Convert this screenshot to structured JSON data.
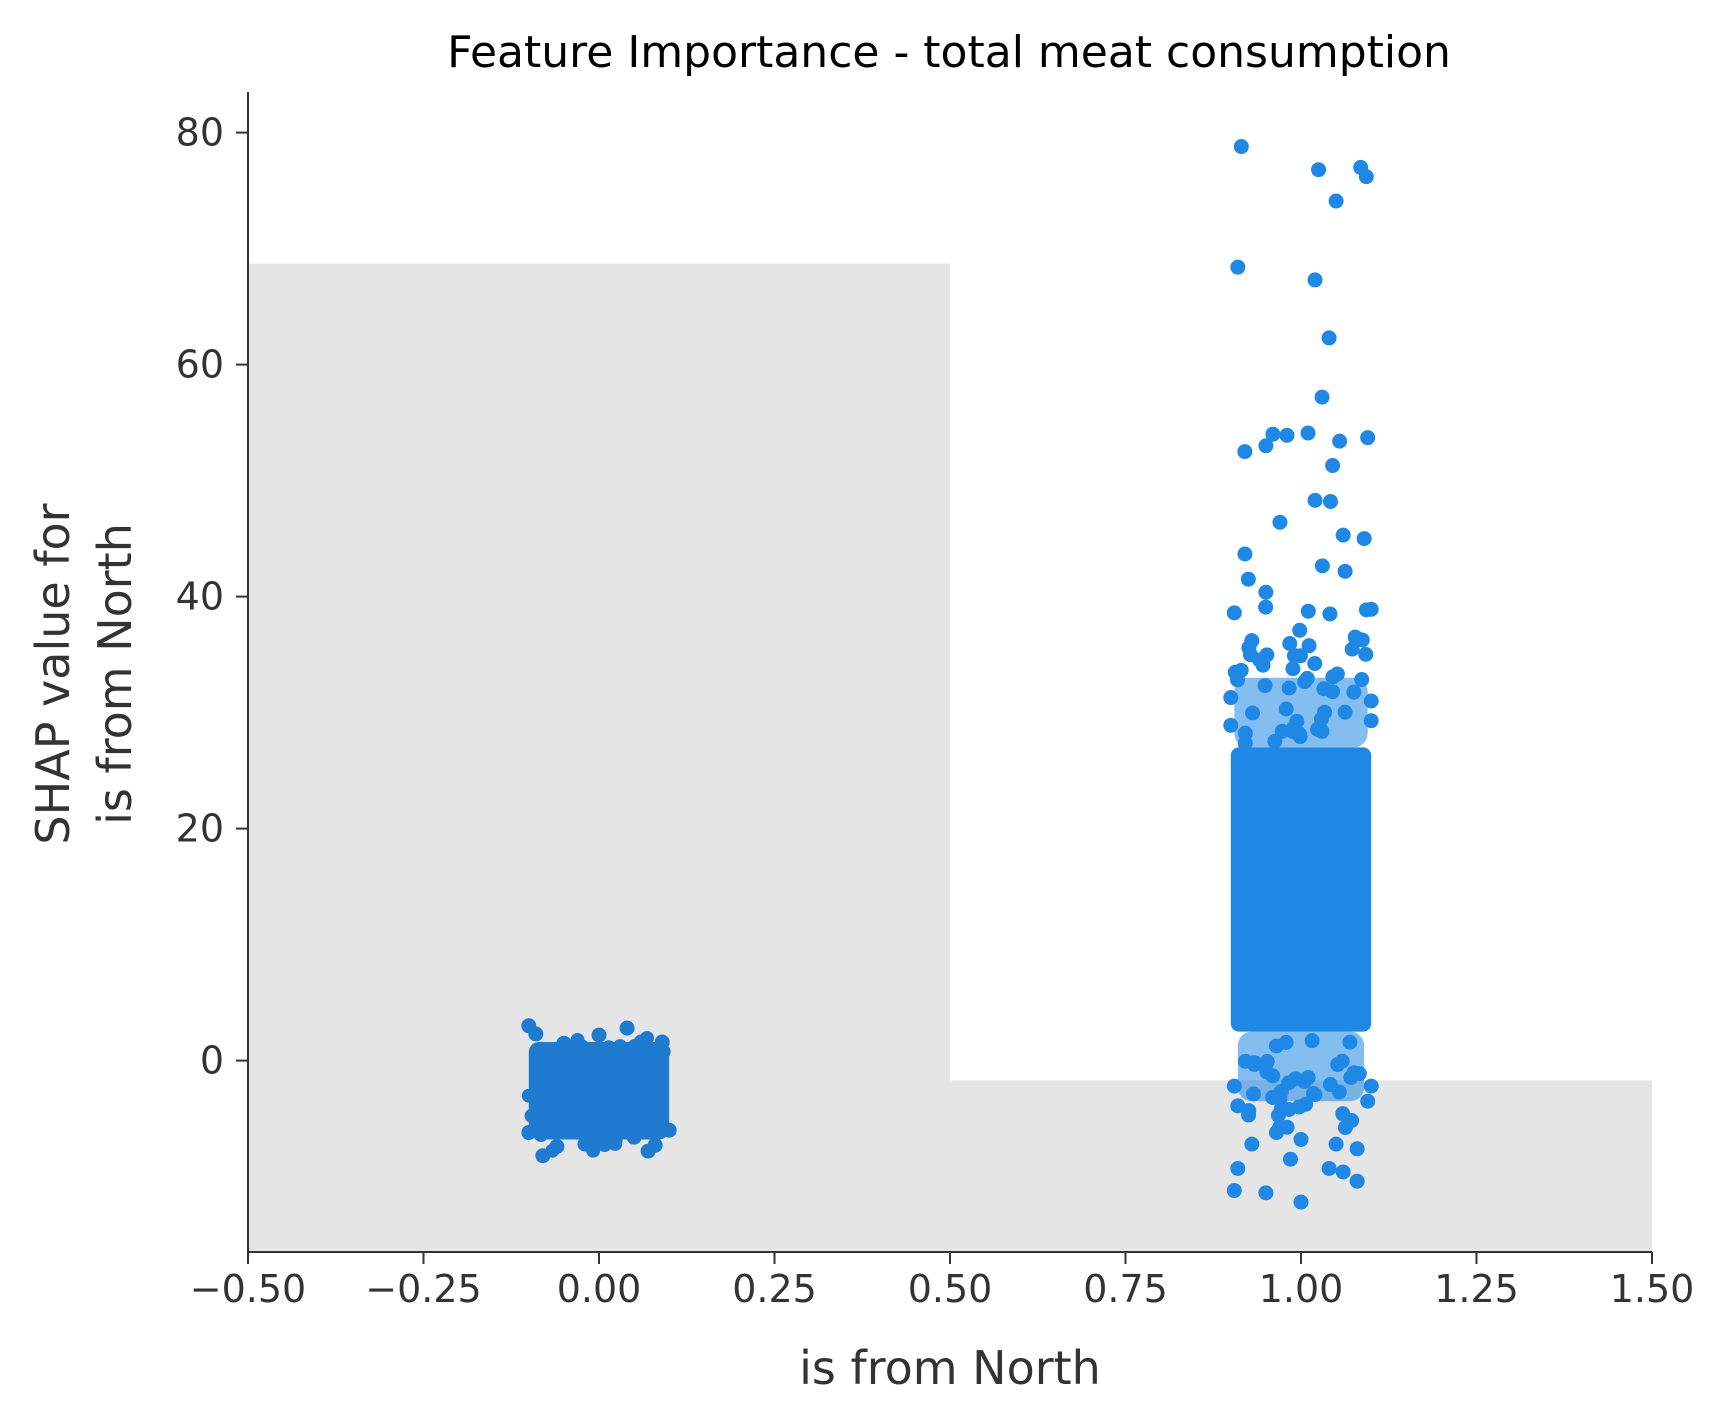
{
  "chart_data": {
    "type": "scatter",
    "title": "Feature Importance - total meat consumption",
    "xlabel": "is from North",
    "ylabel_lines": [
      "SHAP value for",
      "is from North"
    ],
    "xlim": [
      -0.5,
      1.5
    ],
    "ylim": [
      -16.5,
      83.5
    ],
    "x_ticks": [
      -0.5,
      -0.25,
      0.0,
      0.25,
      0.5,
      0.75,
      1.0,
      1.25,
      1.5
    ],
    "x_tick_labels": [
      "−0.50",
      "−0.25",
      "0.00",
      "0.25",
      "0.50",
      "0.75",
      "1.00",
      "1.25",
      "1.50"
    ],
    "y_ticks": [
      0,
      20,
      40,
      60,
      80
    ],
    "y_tick_labels": [
      "0",
      "20",
      "40",
      "60",
      "80"
    ],
    "grid": false,
    "background_bars": [
      {
        "x0": -0.5,
        "x1": 0.5,
        "y_top": 68.7
      },
      {
        "x0": 0.5,
        "x1": 1.5,
        "y_top": -1.7
      }
    ],
    "series": [
      {
        "category_x": 0,
        "color": "#1f7bcf",
        "points": [
          [
            -0.1,
            3.0
          ],
          [
            -0.09,
            2.3
          ],
          [
            -0.05,
            1.5
          ],
          [
            0.0,
            2.2
          ],
          [
            0.04,
            2.8
          ],
          [
            0.06,
            1.6
          ],
          [
            0.09,
            1.6
          ],
          [
            -0.1,
            -6.2
          ],
          [
            -0.08,
            -8.2
          ],
          [
            -0.02,
            -7.2
          ],
          [
            0.02,
            -7.0
          ],
          [
            0.07,
            -7.8
          ],
          [
            0.1,
            -6.0
          ],
          [
            -0.06,
            -7.4
          ],
          [
            0.05,
            -6.6
          ],
          [
            -0.03,
            1.0
          ],
          [
            0.03,
            1.2
          ],
          [
            0.08,
            -7.3
          ]
        ]
      },
      {
        "category_x": 1,
        "color": "#1f88e5",
        "points": [
          [
            0.915,
            78.8
          ],
          [
            1.025,
            76.8
          ],
          [
            1.085,
            77.0
          ],
          [
            1.093,
            76.2
          ],
          [
            1.05,
            74.1
          ],
          [
            0.91,
            68.4
          ],
          [
            1.02,
            67.3
          ],
          [
            1.04,
            62.3
          ],
          [
            1.03,
            57.2
          ],
          [
            0.96,
            54.0
          ],
          [
            0.98,
            53.9
          ],
          [
            1.01,
            54.1
          ],
          [
            1.055,
            53.4
          ],
          [
            1.095,
            53.7
          ],
          [
            0.95,
            53.0
          ],
          [
            0.92,
            52.5
          ],
          [
            1.045,
            51.3
          ],
          [
            1.02,
            48.3
          ],
          [
            1.042,
            48.2
          ],
          [
            0.97,
            46.4
          ],
          [
            1.06,
            45.3
          ],
          [
            1.09,
            45.0
          ],
          [
            0.905,
            38.6
          ],
          [
            0.925,
            41.5
          ],
          [
            1.1,
            38.9
          ],
          [
            0.93,
            36.2
          ],
          [
            1.08,
            36.4
          ],
          [
            0.9,
            31.3
          ],
          [
            1.1,
            31.0
          ],
          [
            0.9,
            28.9
          ],
          [
            1.1,
            29.3
          ],
          [
            0.905,
            -2.2
          ],
          [
            1.1,
            -2.2
          ],
          [
            0.91,
            -3.9
          ],
          [
            1.095,
            -3.5
          ],
          [
            0.93,
            -7.2
          ],
          [
            0.965,
            -6.2
          ],
          [
            1.0,
            -6.8
          ],
          [
            1.05,
            -7.2
          ],
          [
            1.08,
            -7.6
          ],
          [
            0.91,
            -9.3
          ],
          [
            0.985,
            -8.5
          ],
          [
            1.04,
            -9.3
          ],
          [
            1.06,
            -9.6
          ],
          [
            1.08,
            -10.4
          ],
          [
            0.905,
            -11.2
          ],
          [
            0.95,
            -11.4
          ],
          [
            1.0,
            -12.2
          ]
        ]
      }
    ]
  }
}
